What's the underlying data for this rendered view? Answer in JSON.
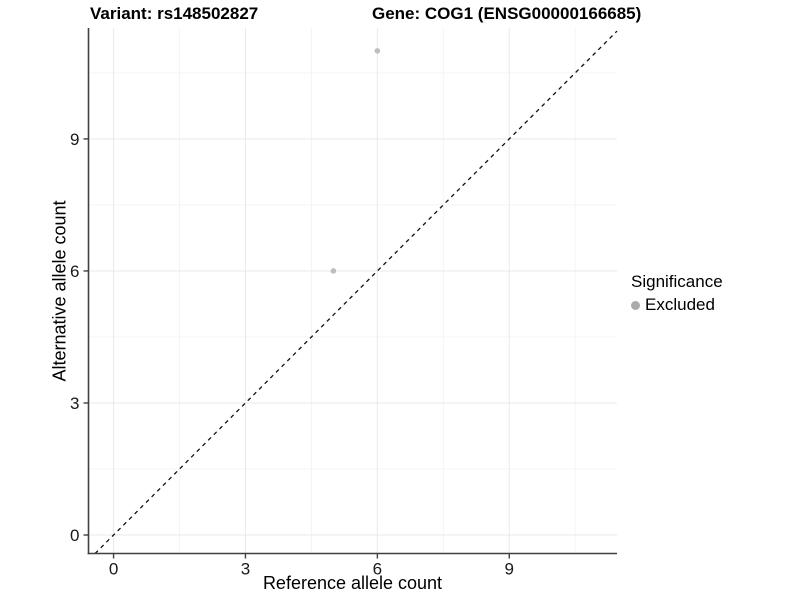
{
  "chart_data": {
    "type": "scatter",
    "title_left": "Variant: rs148502827",
    "title_right": "Gene: COG1 (ENSG00000166685)",
    "xlabel": "Reference allele count",
    "ylabel": "Alternative allele count",
    "xlim": [
      -0.57,
      11.45
    ],
    "ylim": [
      -0.42,
      11.52
    ],
    "x_major_ticks": [
      0,
      3,
      6,
      9
    ],
    "y_major_ticks": [
      0,
      3,
      6,
      9
    ],
    "x_minor_gridlines": [
      1.5,
      4.5,
      7.5,
      10.5
    ],
    "y_minor_gridlines": [
      1.5,
      4.5,
      7.5,
      10.5
    ],
    "grid": "major and minor gridlines on white panel",
    "points": [
      {
        "x": 6,
        "y": 11,
        "series": "Excluded"
      },
      {
        "x": 5,
        "y": 6,
        "series": "Excluded"
      }
    ],
    "identity_line": {
      "slope": 1,
      "intercept": 0,
      "style": "dashed",
      "color": "#111111"
    },
    "legend": {
      "title": "Significance",
      "position": "right",
      "entries": [
        {
          "label": "Excluded",
          "color": "#ababab"
        }
      ]
    },
    "colors": {
      "point": "#bebebe",
      "axis_line": "#404040",
      "major_grid": "#e9e9e9",
      "minor_grid": "#f4f4f4",
      "tick_label": "#1a1a1a"
    }
  }
}
